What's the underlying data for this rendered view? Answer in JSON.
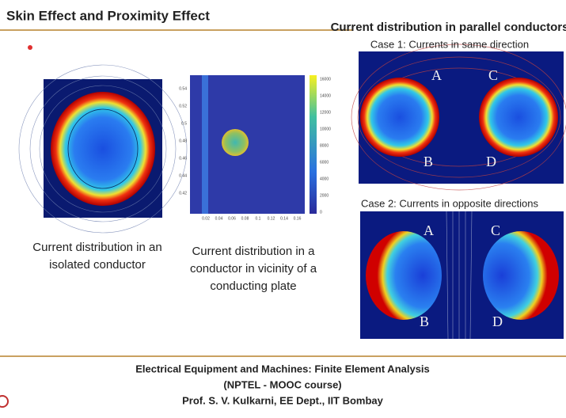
{
  "header": {
    "title": "Skin Effect and Proximity Effect"
  },
  "isolated": {
    "caption": [
      "Current distribution in an",
      "isolated conductor"
    ]
  },
  "plate": {
    "caption": [
      "Current distribution in a",
      "conductor in vicinity of a",
      "conducting plate"
    ],
    "yticks": [
      "0.54",
      "0.52",
      "0.5",
      "0.48",
      "0.46",
      "0.44",
      "0.42"
    ],
    "xticks": [
      "0.02",
      "0.04",
      "0.06",
      "0.08",
      "0.1",
      "0.12",
      "0.14",
      "0.16"
    ],
    "colorbar_ticks": [
      "16000",
      "14000",
      "12000",
      "10000",
      "8000",
      "6000",
      "4000",
      "2000",
      "0"
    ]
  },
  "parallel": {
    "title": "Current distribution in parallel conductors",
    "case1": {
      "title": "Case 1: Currents in same direction",
      "labels": [
        "A",
        "B",
        "C",
        "D"
      ]
    },
    "case2": {
      "title": "Case 2: Currents in opposite directions",
      "labels": [
        "A",
        "B",
        "C",
        "D"
      ]
    }
  },
  "footer": {
    "lines": [
      "Electrical Equipment and Machines: Finite Element Analysis",
      "(NPTEL - MOOC course)",
      "Prof. S. V. Kulkarni, EE Dept., IIT Bombay"
    ]
  }
}
